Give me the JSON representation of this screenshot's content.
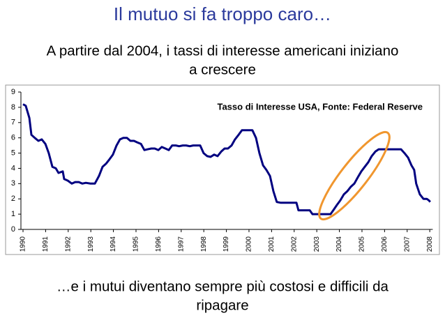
{
  "header": {
    "title": "Il mutuo si fa troppo caro…",
    "subtitle": [
      "A partire dal 2004, i tassi di interesse americani iniziano",
      "a crescere"
    ]
  },
  "footer": [
    "…e i mutui diventano sempre più costosi e difficili da",
    "ripagare"
  ],
  "chart_data": {
    "type": "line",
    "title": "Tasso di Interesse USA, Fonte: Federal Reserve",
    "color": "#000080",
    "x": [
      1990.0,
      1990.12,
      1990.28,
      1990.37,
      1990.52,
      1990.68,
      1990.83,
      1990.99,
      1991.14,
      1991.3,
      1991.45,
      1991.57,
      1991.76,
      1991.82,
      1991.98,
      1992.16,
      1992.31,
      1992.47,
      1992.62,
      1992.78,
      1992.99,
      1993.18,
      1993.36,
      1993.52,
      1993.67,
      1993.83,
      1993.98,
      1994.14,
      1994.29,
      1994.44,
      1994.6,
      1994.75,
      1994.91,
      1995.06,
      1995.22,
      1995.37,
      1995.52,
      1995.68,
      1995.83,
      1995.99,
      1996.14,
      1996.3,
      1996.45,
      1996.6,
      1996.76,
      1996.91,
      1997.07,
      1997.22,
      1997.38,
      1997.53,
      1997.69,
      1997.84,
      1997.99,
      1998.15,
      1998.3,
      1998.46,
      1998.61,
      1998.77,
      1998.92,
      1999.07,
      1999.23,
      1999.38,
      1999.54,
      1999.69,
      1999.85,
      2000.0,
      2000.15,
      2000.31,
      2000.46,
      2000.62,
      2000.77,
      2000.93,
      2001.08,
      2001.23,
      2001.39,
      2001.94,
      2002.1,
      2002.19,
      2002.69,
      2002.81,
      2003.61,
      2003.73,
      2003.89,
      2004.04,
      2004.2,
      2004.35,
      2004.51,
      2004.66,
      2004.81,
      2004.97,
      2005.12,
      2005.28,
      2005.43,
      2005.59,
      2005.74,
      2006.73,
      2006.88,
      2007.04,
      2007.19,
      2007.31,
      2007.4,
      2007.56,
      2007.72,
      2007.87,
      2007.96,
      2008.02
    ],
    "values": [
      8.2,
      8.1,
      7.3,
      6.2,
      6.0,
      5.8,
      5.9,
      5.6,
      5.0,
      4.1,
      4.0,
      3.7,
      3.8,
      3.3,
      3.2,
      3.0,
      3.1,
      3.1,
      3.0,
      3.05,
      3.0,
      3.0,
      3.5,
      4.1,
      4.3,
      4.6,
      4.9,
      5.5,
      5.9,
      6.0,
      6.0,
      5.8,
      5.8,
      5.7,
      5.6,
      5.2,
      5.25,
      5.3,
      5.3,
      5.2,
      5.4,
      5.3,
      5.2,
      5.5,
      5.5,
      5.45,
      5.5,
      5.5,
      5.45,
      5.5,
      5.5,
      5.5,
      5.0,
      4.8,
      4.75,
      4.9,
      4.8,
      5.1,
      5.3,
      5.3,
      5.5,
      5.9,
      6.2,
      6.5,
      6.5,
      6.5,
      6.5,
      6.0,
      5.0,
      4.2,
      3.9,
      3.5,
      2.5,
      1.8,
      1.75,
      1.75,
      1.75,
      1.25,
      1.25,
      1.0,
      1.0,
      1.25,
      1.6,
      1.9,
      2.3,
      2.5,
      2.8,
      3.0,
      3.4,
      3.8,
      4.1,
      4.4,
      4.8,
      5.1,
      5.25,
      5.25,
      5.0,
      4.7,
      4.2,
      3.9,
      3.0,
      2.3,
      2.0,
      2.0,
      1.9,
      1.8
    ],
    "xlim": [
      1990,
      2008.1
    ],
    "xticks": [
      1990,
      1991,
      1992,
      1993,
      1994,
      1995,
      1996,
      1997,
      1998,
      1999,
      2000,
      2001,
      2002,
      2003,
      2004,
      2005,
      2006,
      2007,
      2008
    ],
    "ylim": [
      0,
      9
    ],
    "yticks": [
      0,
      1,
      2,
      3,
      4,
      5,
      6,
      7,
      8,
      9
    ]
  }
}
